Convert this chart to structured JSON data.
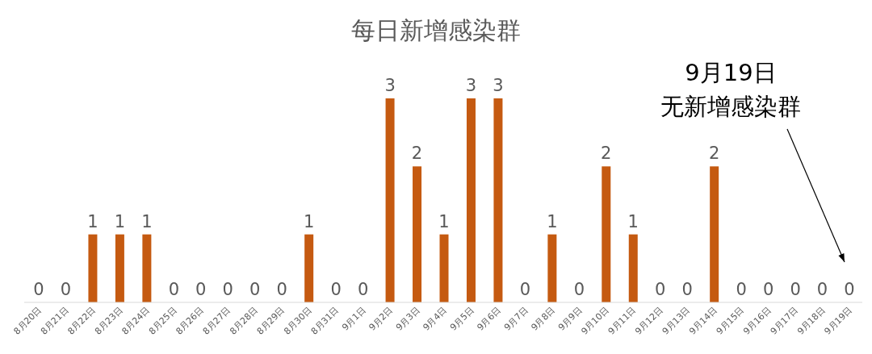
{
  "chart_data": {
    "type": "bar",
    "title": "每日新增感染群",
    "categories": [
      "8月20日",
      "8月21日",
      "8月22日",
      "8月23日",
      "8月24日",
      "8月25日",
      "8月26日",
      "8月27日",
      "8月28日",
      "8月29日",
      "8月30日",
      "8月31日",
      "9月1日",
      "9月2日",
      "9月3日",
      "9月4日",
      "9月5日",
      "9月6日",
      "9月7日",
      "9月8日",
      "9月9日",
      "9月10日",
      "9月11日",
      "9月12日",
      "9月13日",
      "9月14日",
      "9月15日",
      "9月16日",
      "9月17日",
      "9月18日",
      "9月19日"
    ],
    "values": [
      0,
      0,
      1,
      1,
      1,
      0,
      0,
      0,
      0,
      0,
      1,
      0,
      0,
      3,
      2,
      1,
      3,
      3,
      0,
      1,
      0,
      2,
      1,
      0,
      0,
      2,
      0,
      0,
      0,
      0,
      0
    ],
    "color": "#c55a11",
    "data_labels": true,
    "grid": false,
    "tick_labels": "x",
    "annotations": [
      "9月19日",
      "无新增感染群"
    ]
  }
}
